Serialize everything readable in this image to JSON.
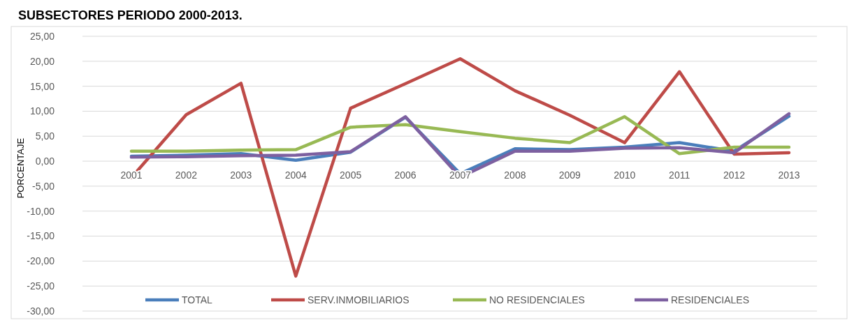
{
  "chart_data": {
    "type": "line",
    "title": "SUBSECTORES PERIODO 2000-2013.",
    "ylabel": "PORCENTAJE",
    "categories": [
      "2001",
      "2002",
      "2003",
      "2004",
      "2005",
      "2006",
      "2007",
      "2008",
      "2009",
      "2010",
      "2011",
      "2012",
      "2013"
    ],
    "series": [
      {
        "name": "TOTAL",
        "color": "#4a7ebb",
        "values": [
          1.0,
          1.2,
          1.5,
          0.2,
          1.8,
          8.8,
          -2.5,
          2.5,
          2.3,
          2.8,
          3.7,
          2.0,
          9.0
        ]
      },
      {
        "name": "SERV.INMOBILIARIOS",
        "color": "#be4b48",
        "values": [
          -3.3,
          9.3,
          15.6,
          -23.0,
          10.6,
          15.5,
          20.5,
          14.1,
          9.2,
          3.7,
          17.9,
          1.4,
          1.7
        ]
      },
      {
        "name": "NO RESIDENCIALES",
        "color": "#98b954",
        "values": [
          2.0,
          2.0,
          2.2,
          2.3,
          6.8,
          7.3,
          5.9,
          4.6,
          3.7,
          8.9,
          1.5,
          2.8,
          2.8
        ]
      },
      {
        "name": "RESIDENCIALES",
        "color": "#7d60a0",
        "values": [
          0.8,
          0.9,
          1.1,
          1.2,
          1.9,
          8.9,
          -3.2,
          2.0,
          2.0,
          2.6,
          2.7,
          1.7,
          9.5
        ]
      }
    ],
    "ylim": [
      -30,
      25
    ],
    "yticks": [
      {
        "value": -30,
        "label": "-30,00"
      },
      {
        "value": -25,
        "label": "-25,00"
      },
      {
        "value": -20,
        "label": "-20,00"
      },
      {
        "value": -15,
        "label": "-15,00"
      },
      {
        "value": -10,
        "label": "-10,00"
      },
      {
        "value": -5,
        "label": "-5,00"
      },
      {
        "value": 0,
        "label": "0,00"
      },
      {
        "value": 5,
        "label": "5,00"
      },
      {
        "value": 10,
        "label": "10,00"
      },
      {
        "value": 15,
        "label": "15,00"
      },
      {
        "value": 20,
        "label": "20,00"
      },
      {
        "value": 25,
        "label": "25,00"
      }
    ],
    "grid": "y",
    "legend": "bottom",
    "marker": "none",
    "line_style": "solid"
  }
}
